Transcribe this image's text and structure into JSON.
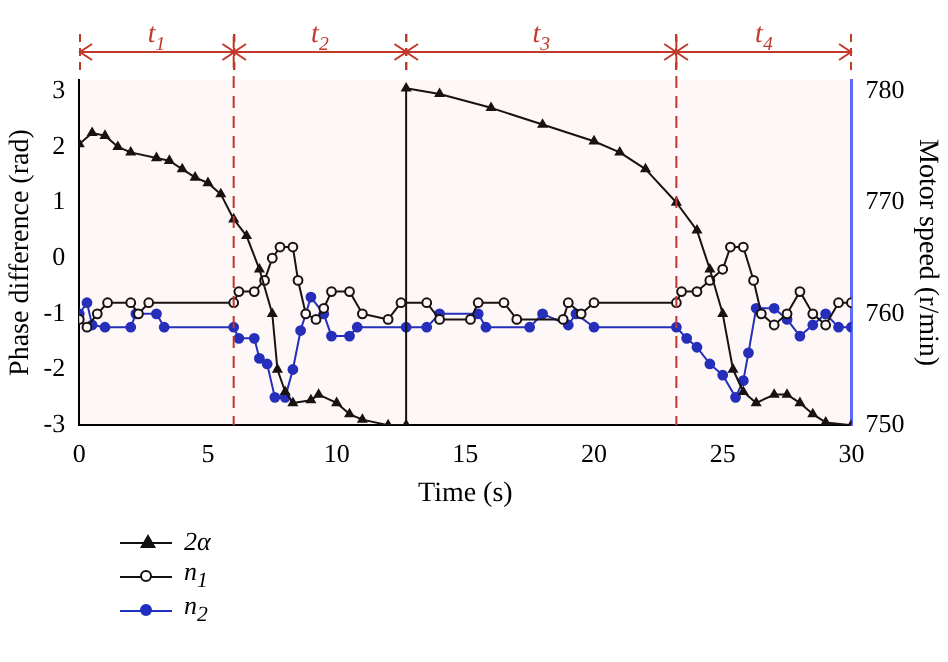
{
  "chart_data": {
    "type": "line",
    "xlabel": "Time (s)",
    "ylabel": "Phase difference (rad)",
    "y2label": "Motor speed (r/min)",
    "xlim": [
      0,
      30
    ],
    "xticks": [
      0,
      5,
      10,
      15,
      20,
      25,
      30
    ],
    "ylim": [
      -3,
      3.2
    ],
    "yticks": [
      -3,
      -2,
      -1,
      0,
      1,
      2,
      3
    ],
    "y2lim": [
      750,
      781
    ],
    "y2ticks": [
      750,
      760,
      770,
      780
    ],
    "grid": false,
    "legend": "bottom left",
    "line_style": "solid",
    "ref_lines": [
      {
        "axis": "x",
        "value": 6,
        "color": "#c0392b",
        "line_style": "dashed"
      },
      {
        "axis": "x",
        "value": 23.2,
        "color": "#c0392b",
        "line_style": "dashed"
      }
    ],
    "bands": [
      {
        "axis": "x",
        "from": 0,
        "to": 6,
        "label": "t$_{1}$",
        "color": "#c0392b"
      },
      {
        "axis": "x",
        "from": 6,
        "to": 12.7,
        "label": "t$_{2}$",
        "color": "#c0392b"
      },
      {
        "axis": "x",
        "from": 12.7,
        "to": 23.2,
        "label": "t$_{3}$",
        "color": "#c0392b"
      },
      {
        "axis": "x",
        "from": 23.2,
        "to": 30,
        "label": "t$_{4}$",
        "color": "#c0392b"
      }
    ],
    "series": [
      {
        "name": "2α",
        "color": "#111111",
        "marker": "triangle",
        "x": [
          0,
          0.5,
          1,
          1.5,
          2,
          3,
          3.5,
          4,
          4.5,
          5,
          5.5,
          6,
          6.5,
          7,
          7.5,
          7.7,
          8,
          8.3,
          9,
          9.3,
          10,
          10.5,
          11,
          12,
          12.7,
          12.7,
          14,
          16,
          18,
          20,
          21,
          22,
          23.2,
          24,
          24.5,
          25,
          25.4,
          25.8,
          26.3,
          27,
          27.5,
          28,
          28.5,
          29,
          30
        ],
        "values": [
          2.05,
          2.25,
          2.2,
          2.0,
          1.9,
          1.8,
          1.75,
          1.6,
          1.45,
          1.35,
          1.15,
          0.7,
          0.4,
          -0.2,
          -1.0,
          -2.0,
          -2.4,
          -2.6,
          -2.55,
          -2.45,
          -2.6,
          -2.8,
          -2.9,
          -3.0,
          -3.0,
          3.05,
          2.95,
          2.7,
          2.4,
          2.1,
          1.9,
          1.6,
          1.0,
          0.5,
          -0.2,
          -1.0,
          -2.0,
          -2.4,
          -2.6,
          -2.45,
          -2.45,
          -2.6,
          -2.8,
          -2.95,
          -3.0
        ]
      },
      {
        "name": "n$_{1}$",
        "color": "#111111",
        "marker": "circle",
        "axis": "y2",
        "x": [
          0,
          0.3,
          0.7,
          1.1,
          2,
          2.3,
          2.7,
          6,
          6.2,
          6.8,
          7.2,
          7.5,
          7.8,
          8.3,
          8.5,
          8.8,
          9.2,
          9.5,
          9.8,
          10.5,
          11,
          12,
          12.5,
          13.5,
          14,
          15.2,
          15.5,
          16.5,
          17,
          18.8,
          19,
          19.5,
          20,
          23.2,
          23.4,
          24,
          24.5,
          25,
          25.3,
          25.8,
          26.2,
          26.5,
          27,
          27.5,
          28,
          28.5,
          29,
          29.5,
          30
        ],
        "values": [
          759.5,
          758.8,
          760,
          761,
          761,
          760,
          761,
          761,
          762,
          762,
          763,
          765,
          766,
          766,
          763,
          760,
          759.5,
          760.5,
          762,
          762,
          760,
          759.5,
          761,
          761,
          759.5,
          759.5,
          761,
          761,
          759.5,
          759.5,
          761,
          760,
          761,
          761,
          762,
          762,
          763,
          764,
          766,
          766,
          763,
          760,
          759,
          760,
          762,
          760,
          759,
          761,
          761
        ]
      },
      {
        "name": "n$_{2}$",
        "color": "#1f2fbf",
        "marker": "circle",
        "axis": "y2",
        "x": [
          0,
          0.3,
          0.5,
          1,
          2,
          2.2,
          3,
          3.3,
          6,
          6.2,
          6.8,
          7,
          7.3,
          7.6,
          8,
          8.3,
          8.6,
          9,
          9.5,
          9.8,
          10.5,
          10.8,
          12.7,
          13.5,
          14,
          15.5,
          15.8,
          17.5,
          18,
          19,
          19.3,
          20,
          23.2,
          23.6,
          24,
          24.5,
          25,
          25.5,
          25.8,
          26,
          26.3,
          27,
          27.5,
          28,
          28.5,
          29,
          29.5,
          30
        ],
        "values": [
          760,
          761,
          759,
          758.8,
          758.8,
          760,
          760,
          758.8,
          758.8,
          757.8,
          757.8,
          756,
          755.5,
          752.5,
          752.5,
          755,
          758.5,
          761.5,
          760,
          758,
          758,
          758.8,
          758.8,
          758.8,
          760,
          760,
          758.8,
          758.8,
          760,
          759,
          760,
          758.8,
          758.8,
          757.8,
          757,
          755.5,
          754.5,
          752.5,
          754,
          756.5,
          760.5,
          760.5,
          759.5,
          758,
          759,
          760,
          758.8,
          758.8
        ]
      }
    ]
  }
}
